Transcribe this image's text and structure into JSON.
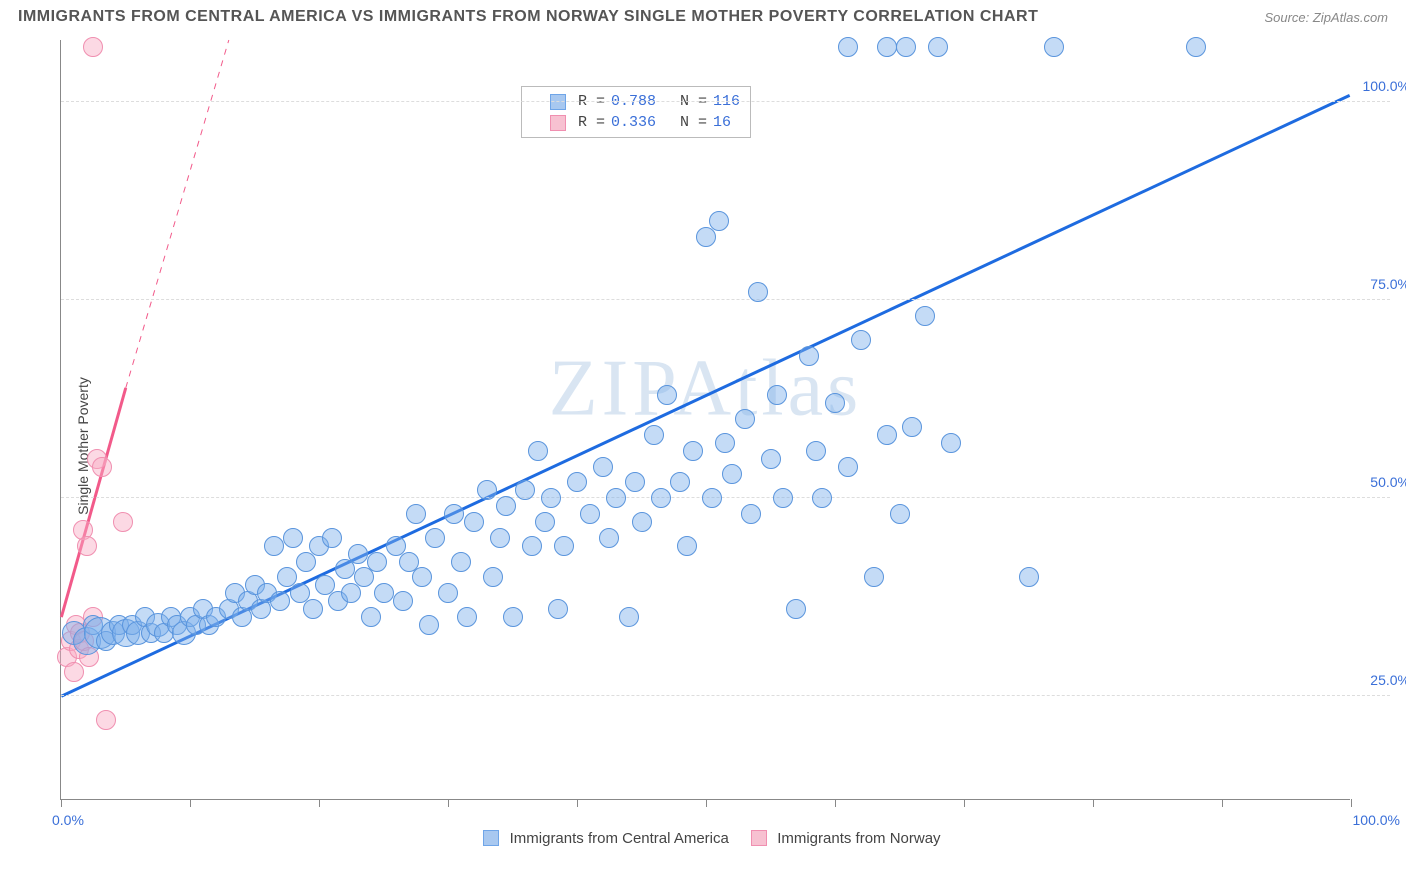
{
  "title": "IMMIGRANTS FROM CENTRAL AMERICA VS IMMIGRANTS FROM NORWAY SINGLE MOTHER POVERTY CORRELATION CHART",
  "source": "Source: ZipAtlas.com",
  "y_axis_label": "Single Mother Poverty",
  "watermark": "ZIPAtlas",
  "chart": {
    "type": "scatter",
    "background_color": "#ffffff",
    "grid_color": "#dddddd",
    "axis_color": "#888888",
    "label_color": "#3a6fd8",
    "xlim": [
      0,
      100
    ],
    "ylim": [
      12,
      108
    ],
    "x_ticks": [
      0,
      10,
      20,
      30,
      40,
      50,
      60,
      70,
      80,
      90,
      100
    ],
    "y_ticks": [
      25,
      50,
      75,
      100
    ],
    "y_tick_labels": [
      "25.0%",
      "50.0%",
      "75.0%",
      "100.0%"
    ],
    "x_min_label": "0.0%",
    "x_max_label": "100.0%"
  },
  "legend_top": {
    "r_label": "R =",
    "n_label": "N =",
    "rows": [
      {
        "swatch_fill": "#a8c8f0",
        "swatch_stroke": "#6fa5e8",
        "r": "0.788",
        "n": "116"
      },
      {
        "swatch_fill": "#f7c1d1",
        "swatch_stroke": "#f08fb0",
        "r": "0.336",
        "n": " 16"
      }
    ]
  },
  "legend_bottom": {
    "items": [
      {
        "swatch_fill": "#a8c8f0",
        "swatch_stroke": "#6fa5e8",
        "label": "Immigrants from Central America"
      },
      {
        "swatch_fill": "#f7c1d1",
        "swatch_stroke": "#f08fb0",
        "label": "Immigrants from Norway"
      }
    ]
  },
  "series_blue": {
    "fill": "rgba(125,175,235,0.45)",
    "stroke": "#5a95dd",
    "stroke_width": 1.5,
    "points": [
      {
        "x": 1,
        "y": 33,
        "r": 12
      },
      {
        "x": 2,
        "y": 32,
        "r": 14
      },
      {
        "x": 2.5,
        "y": 34,
        "r": 10
      },
      {
        "x": 3,
        "y": 33,
        "r": 16
      },
      {
        "x": 3.5,
        "y": 32,
        "r": 10
      },
      {
        "x": 4,
        "y": 33,
        "r": 12
      },
      {
        "x": 4.5,
        "y": 34,
        "r": 10
      },
      {
        "x": 5,
        "y": 33,
        "r": 14
      },
      {
        "x": 5.5,
        "y": 34,
        "r": 10
      },
      {
        "x": 6,
        "y": 33,
        "r": 12
      },
      {
        "x": 6.5,
        "y": 35,
        "r": 10
      },
      {
        "x": 7,
        "y": 33,
        "r": 10
      },
      {
        "x": 7.5,
        "y": 34,
        "r": 12
      },
      {
        "x": 8,
        "y": 33,
        "r": 10
      },
      {
        "x": 8.5,
        "y": 35,
        "r": 10
      },
      {
        "x": 9,
        "y": 34,
        "r": 10
      },
      {
        "x": 9.5,
        "y": 33,
        "r": 12
      },
      {
        "x": 10,
        "y": 35,
        "r": 10
      },
      {
        "x": 10.5,
        "y": 34,
        "r": 10
      },
      {
        "x": 11,
        "y": 36,
        "r": 10
      },
      {
        "x": 11.5,
        "y": 34,
        "r": 10
      },
      {
        "x": 12,
        "y": 35,
        "r": 10
      },
      {
        "x": 13,
        "y": 36,
        "r": 10
      },
      {
        "x": 13.5,
        "y": 38,
        "r": 10
      },
      {
        "x": 14,
        "y": 35,
        "r": 10
      },
      {
        "x": 14.5,
        "y": 37,
        "r": 10
      },
      {
        "x": 15,
        "y": 39,
        "r": 10
      },
      {
        "x": 15.5,
        "y": 36,
        "r": 10
      },
      {
        "x": 16,
        "y": 38,
        "r": 10
      },
      {
        "x": 16.5,
        "y": 44,
        "r": 10
      },
      {
        "x": 17,
        "y": 37,
        "r": 10
      },
      {
        "x": 17.5,
        "y": 40,
        "r": 10
      },
      {
        "x": 18,
        "y": 45,
        "r": 10
      },
      {
        "x": 18.5,
        "y": 38,
        "r": 10
      },
      {
        "x": 19,
        "y": 42,
        "r": 10
      },
      {
        "x": 19.5,
        "y": 36,
        "r": 10
      },
      {
        "x": 20,
        "y": 44,
        "r": 10
      },
      {
        "x": 20.5,
        "y": 39,
        "r": 10
      },
      {
        "x": 21,
        "y": 45,
        "r": 10
      },
      {
        "x": 21.5,
        "y": 37,
        "r": 10
      },
      {
        "x": 22,
        "y": 41,
        "r": 10
      },
      {
        "x": 22.5,
        "y": 38,
        "r": 10
      },
      {
        "x": 23,
        "y": 43,
        "r": 10
      },
      {
        "x": 23.5,
        "y": 40,
        "r": 10
      },
      {
        "x": 24,
        "y": 35,
        "r": 10
      },
      {
        "x": 24.5,
        "y": 42,
        "r": 10
      },
      {
        "x": 25,
        "y": 38,
        "r": 10
      },
      {
        "x": 26,
        "y": 44,
        "r": 10
      },
      {
        "x": 26.5,
        "y": 37,
        "r": 10
      },
      {
        "x": 27,
        "y": 42,
        "r": 10
      },
      {
        "x": 27.5,
        "y": 48,
        "r": 10
      },
      {
        "x": 28,
        "y": 40,
        "r": 10
      },
      {
        "x": 28.5,
        "y": 34,
        "r": 10
      },
      {
        "x": 29,
        "y": 45,
        "r": 10
      },
      {
        "x": 30,
        "y": 38,
        "r": 10
      },
      {
        "x": 30.5,
        "y": 48,
        "r": 10
      },
      {
        "x": 31,
        "y": 42,
        "r": 10
      },
      {
        "x": 31.5,
        "y": 35,
        "r": 10
      },
      {
        "x": 32,
        "y": 47,
        "r": 10
      },
      {
        "x": 33,
        "y": 51,
        "r": 10
      },
      {
        "x": 33.5,
        "y": 40,
        "r": 10
      },
      {
        "x": 34,
        "y": 45,
        "r": 10
      },
      {
        "x": 34.5,
        "y": 49,
        "r": 10
      },
      {
        "x": 35,
        "y": 35,
        "r": 10
      },
      {
        "x": 36,
        "y": 51,
        "r": 10
      },
      {
        "x": 36.5,
        "y": 44,
        "r": 10
      },
      {
        "x": 37,
        "y": 56,
        "r": 10
      },
      {
        "x": 37.5,
        "y": 47,
        "r": 10
      },
      {
        "x": 38,
        "y": 50,
        "r": 10
      },
      {
        "x": 38.5,
        "y": 36,
        "r": 10
      },
      {
        "x": 39,
        "y": 44,
        "r": 10
      },
      {
        "x": 40,
        "y": 52,
        "r": 10
      },
      {
        "x": 41,
        "y": 48,
        "r": 10
      },
      {
        "x": 42,
        "y": 54,
        "r": 10
      },
      {
        "x": 42.5,
        "y": 45,
        "r": 10
      },
      {
        "x": 43,
        "y": 50,
        "r": 10
      },
      {
        "x": 44,
        "y": 35,
        "r": 10
      },
      {
        "x": 44.5,
        "y": 52,
        "r": 10
      },
      {
        "x": 45,
        "y": 47,
        "r": 10
      },
      {
        "x": 46,
        "y": 58,
        "r": 10
      },
      {
        "x": 46.5,
        "y": 50,
        "r": 10
      },
      {
        "x": 47,
        "y": 63,
        "r": 10
      },
      {
        "x": 48,
        "y": 52,
        "r": 10
      },
      {
        "x": 48.5,
        "y": 44,
        "r": 10
      },
      {
        "x": 49,
        "y": 56,
        "r": 10
      },
      {
        "x": 50,
        "y": 83,
        "r": 10
      },
      {
        "x": 50.5,
        "y": 50,
        "r": 10
      },
      {
        "x": 51,
        "y": 85,
        "r": 10
      },
      {
        "x": 51.5,
        "y": 57,
        "r": 10
      },
      {
        "x": 52,
        "y": 53,
        "r": 10
      },
      {
        "x": 53,
        "y": 60,
        "r": 10
      },
      {
        "x": 53.5,
        "y": 48,
        "r": 10
      },
      {
        "x": 54,
        "y": 76,
        "r": 10
      },
      {
        "x": 55,
        "y": 55,
        "r": 10
      },
      {
        "x": 55.5,
        "y": 63,
        "r": 10
      },
      {
        "x": 56,
        "y": 50,
        "r": 10
      },
      {
        "x": 57,
        "y": 36,
        "r": 10
      },
      {
        "x": 58,
        "y": 68,
        "r": 10
      },
      {
        "x": 58.5,
        "y": 56,
        "r": 10
      },
      {
        "x": 59,
        "y": 50,
        "r": 10
      },
      {
        "x": 60,
        "y": 62,
        "r": 10
      },
      {
        "x": 61,
        "y": 54,
        "r": 10
      },
      {
        "x": 62,
        "y": 70,
        "r": 10
      },
      {
        "x": 63,
        "y": 40,
        "r": 10
      },
      {
        "x": 64,
        "y": 58,
        "r": 10
      },
      {
        "x": 65,
        "y": 48,
        "r": 10
      },
      {
        "x": 66,
        "y": 59,
        "r": 10
      },
      {
        "x": 67,
        "y": 73,
        "r": 10
      },
      {
        "x": 69,
        "y": 57,
        "r": 10
      },
      {
        "x": 75,
        "y": 40,
        "r": 10
      },
      {
        "x": 61,
        "y": 107,
        "r": 10
      },
      {
        "x": 64,
        "y": 107,
        "r": 10
      },
      {
        "x": 65.5,
        "y": 107,
        "r": 10
      },
      {
        "x": 68,
        "y": 107,
        "r": 10
      },
      {
        "x": 77,
        "y": 107,
        "r": 10
      },
      {
        "x": 88,
        "y": 107,
        "r": 10
      }
    ],
    "trend": {
      "x1": 0,
      "y1": 25,
      "x2": 100,
      "y2": 101,
      "color": "#1e6be0",
      "width": 3,
      "dash_x1": 100,
      "dash_y1": 101,
      "dash_x2": 108,
      "dash_y2": 107
    }
  },
  "series_pink": {
    "fill": "rgba(248,170,195,0.45)",
    "stroke": "#f08fb0",
    "stroke_width": 1.5,
    "points": [
      {
        "x": 0.5,
        "y": 30,
        "r": 10
      },
      {
        "x": 0.8,
        "y": 32,
        "r": 10
      },
      {
        "x": 1,
        "y": 28,
        "r": 10
      },
      {
        "x": 1.2,
        "y": 34,
        "r": 10
      },
      {
        "x": 1.4,
        "y": 31,
        "r": 10
      },
      {
        "x": 1.5,
        "y": 33,
        "r": 10
      },
      {
        "x": 1.7,
        "y": 46,
        "r": 10
      },
      {
        "x": 1.8,
        "y": 32,
        "r": 10
      },
      {
        "x": 2,
        "y": 44,
        "r": 10
      },
      {
        "x": 2.2,
        "y": 30,
        "r": 10
      },
      {
        "x": 2.5,
        "y": 35,
        "r": 10
      },
      {
        "x": 2.8,
        "y": 55,
        "r": 10
      },
      {
        "x": 3.2,
        "y": 54,
        "r": 10
      },
      {
        "x": 4.8,
        "y": 47,
        "r": 10
      },
      {
        "x": 3.5,
        "y": 22,
        "r": 10
      },
      {
        "x": 2.5,
        "y": 107,
        "r": 10
      }
    ],
    "trend": {
      "x1": 0,
      "y1": 35,
      "x2": 5,
      "y2": 64,
      "color": "#f25a8a",
      "width": 3,
      "dash_x1": 5,
      "dash_y1": 64,
      "dash_x2": 13,
      "dash_y2": 108
    }
  }
}
